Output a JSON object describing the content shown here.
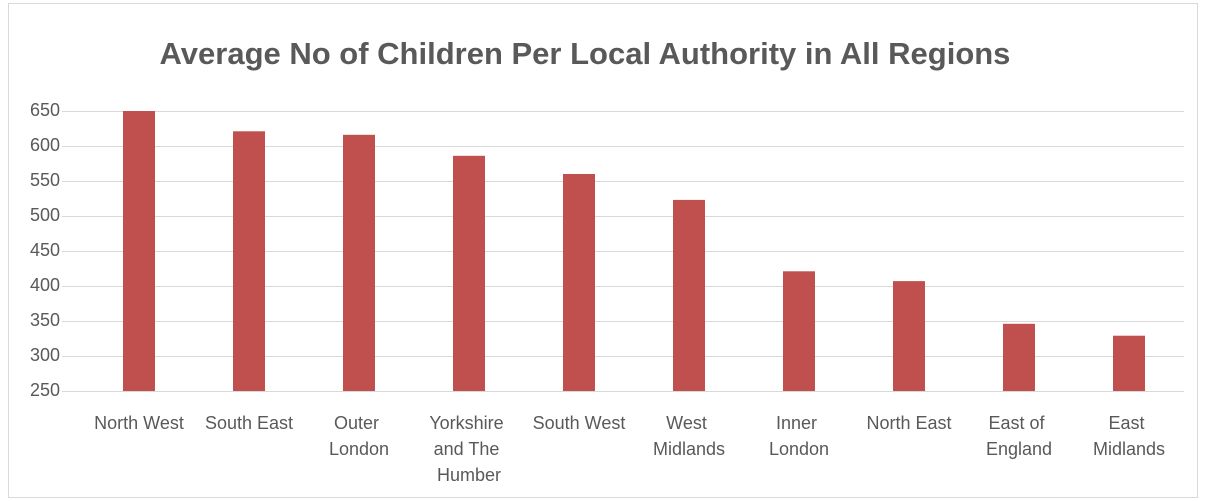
{
  "chart_data": {
    "type": "bar",
    "title": "Average No of Children Per Local Authority in All Regions",
    "categories": [
      "North West",
      "South East",
      "Outer London",
      "Yorkshire and The Humber",
      "South West",
      "West Midlands",
      "Inner London",
      "North East",
      "East of England",
      "East Midlands"
    ],
    "values": [
      650,
      621,
      616,
      586,
      560,
      523,
      421,
      407,
      346,
      329
    ],
    "color": "#c0504d",
    "ylim": [
      250,
      650
    ],
    "yticks": [
      250,
      300,
      350,
      400,
      450,
      500,
      550,
      600,
      650
    ],
    "grid": true
  }
}
